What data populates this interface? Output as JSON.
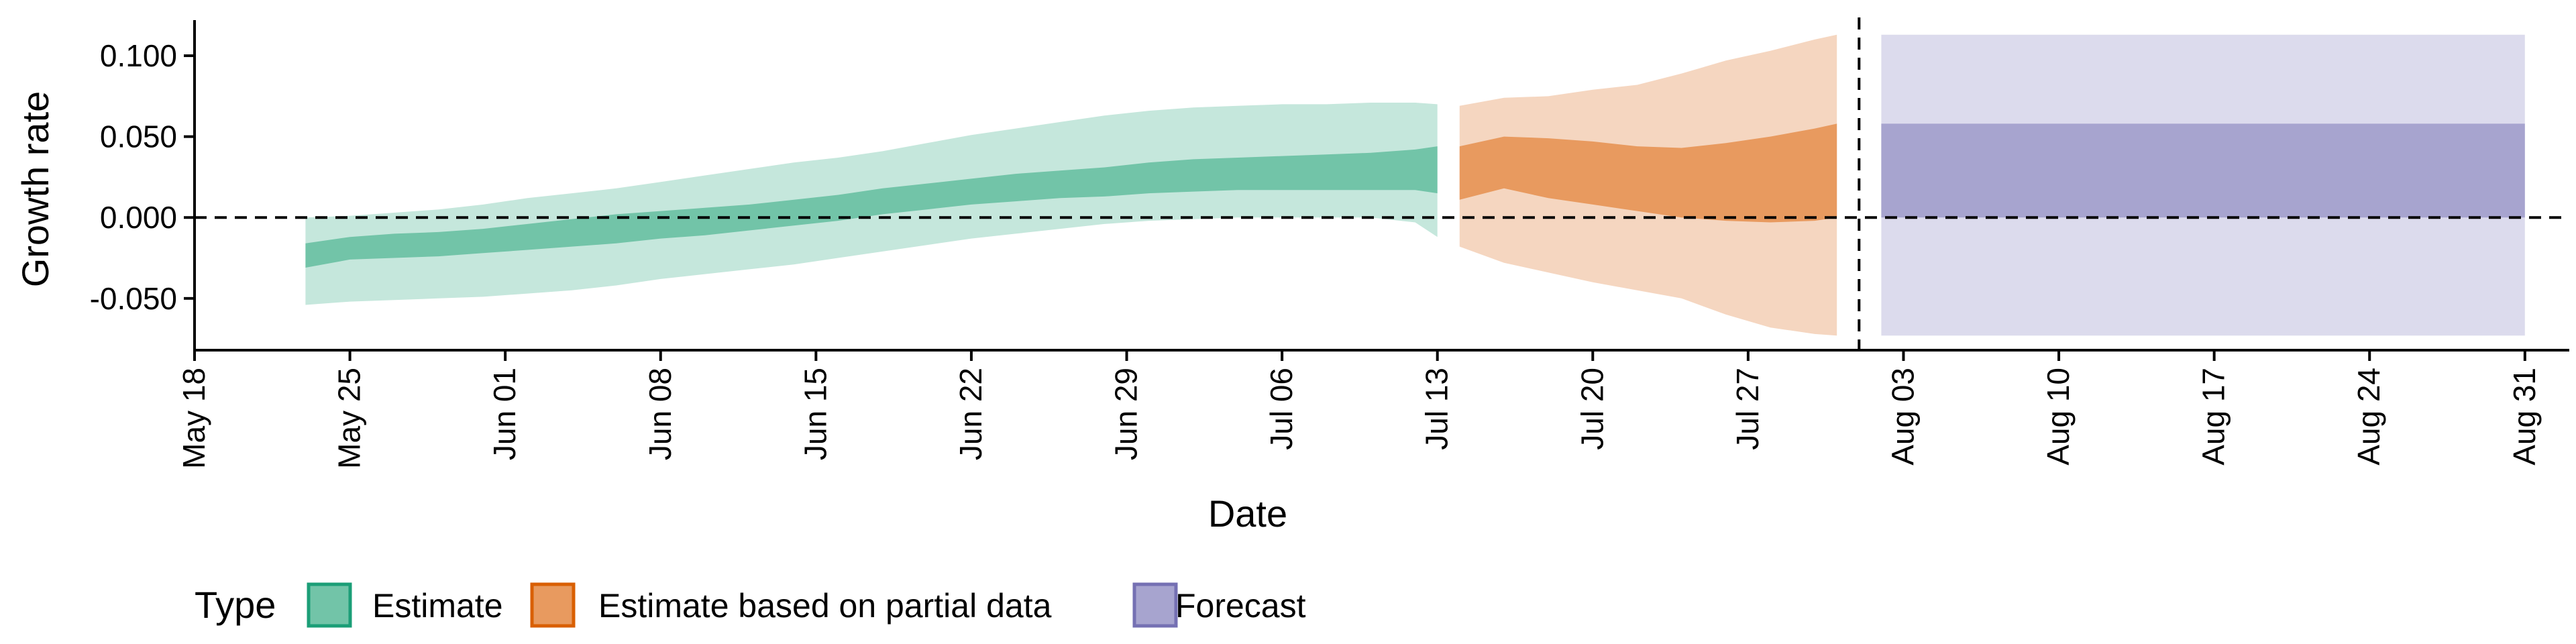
{
  "chart_data": {
    "type": "area",
    "xlabel": "Date",
    "ylabel": "Growth rate",
    "xlim": [
      "2020-05-18",
      "2020-09-02"
    ],
    "ylim": [
      -0.082,
      0.122
    ],
    "x_ticks": [
      "2020-05-18",
      "2020-05-25",
      "2020-06-01",
      "2020-06-08",
      "2020-06-15",
      "2020-06-22",
      "2020-06-29",
      "2020-07-06",
      "2020-07-13",
      "2020-07-20",
      "2020-07-27",
      "2020-08-03",
      "2020-08-10",
      "2020-08-17",
      "2020-08-24",
      "2020-08-31"
    ],
    "x_tick_labels": [
      "May 18",
      "May 25",
      "Jun 01",
      "Jun 08",
      "Jun 15",
      "Jun 22",
      "Jun 29",
      "Jul 06",
      "Jul 13",
      "Jul 20",
      "Jul 27",
      "Aug 03",
      "Aug 10",
      "Aug 17",
      "Aug 24",
      "Aug 31"
    ],
    "y_ticks": [
      -0.05,
      0.0,
      0.05,
      0.1
    ],
    "y_tick_labels": [
      "-0.050",
      "0.000",
      "0.050",
      "0.100"
    ],
    "hline": 0,
    "vline": "2020-08-01",
    "grid": false,
    "legend": {
      "title": "Type",
      "position": "bottom",
      "entries": [
        {
          "label": "Estimate",
          "fill": "#72c4a8",
          "border": "#1b9e77"
        },
        {
          "label": "Estimate based on partial data",
          "fill": "#e89a5f",
          "border": "#d95f02"
        },
        {
          "label": "Forecast",
          "fill": "#a7a4cf",
          "border": "#7570b3"
        }
      ]
    },
    "series": [
      {
        "name": "Estimate",
        "color_inner": "#72c4a8",
        "color_outer": "#c5e7dc",
        "x": [
          "2020-05-23",
          "2020-05-25",
          "2020-05-27",
          "2020-05-29",
          "2020-05-31",
          "2020-06-02",
          "2020-06-04",
          "2020-06-06",
          "2020-06-08",
          "2020-06-10",
          "2020-06-12",
          "2020-06-14",
          "2020-06-16",
          "2020-06-18",
          "2020-06-20",
          "2020-06-22",
          "2020-06-24",
          "2020-06-26",
          "2020-06-28",
          "2020-06-30",
          "2020-07-02",
          "2020-07-04",
          "2020-07-06",
          "2020-07-08",
          "2020-07-10",
          "2020-07-12",
          "2020-07-13"
        ],
        "inner_low": [
          -0.031,
          -0.026,
          -0.025,
          -0.024,
          -0.022,
          -0.02,
          -0.018,
          -0.016,
          -0.013,
          -0.011,
          -0.008,
          -0.005,
          -0.002,
          0.002,
          0.005,
          0.008,
          0.01,
          0.012,
          0.013,
          0.015,
          0.016,
          0.017,
          0.017,
          0.017,
          0.017,
          0.017,
          0.015
        ],
        "inner_high": [
          -0.016,
          -0.012,
          -0.01,
          -0.009,
          -0.007,
          -0.004,
          -0.001,
          0.002,
          0.004,
          0.006,
          0.008,
          0.011,
          0.014,
          0.018,
          0.021,
          0.024,
          0.027,
          0.029,
          0.031,
          0.034,
          0.036,
          0.037,
          0.038,
          0.039,
          0.04,
          0.042,
          0.044
        ],
        "outer_low": [
          -0.054,
          -0.052,
          -0.051,
          -0.05,
          -0.049,
          -0.047,
          -0.045,
          -0.042,
          -0.038,
          -0.035,
          -0.032,
          -0.029,
          -0.025,
          -0.021,
          -0.017,
          -0.013,
          -0.01,
          -0.007,
          -0.004,
          -0.002,
          -0.001,
          0.0,
          0.0,
          0.0,
          0.0,
          -0.003,
          -0.012
        ],
        "outer_high": [
          0.0,
          0.001,
          0.003,
          0.005,
          0.008,
          0.012,
          0.015,
          0.018,
          0.022,
          0.026,
          0.03,
          0.034,
          0.037,
          0.041,
          0.046,
          0.051,
          0.055,
          0.059,
          0.063,
          0.066,
          0.068,
          0.069,
          0.07,
          0.07,
          0.071,
          0.071,
          0.07
        ]
      },
      {
        "name": "Estimate based on partial data",
        "color_inner": "#e89a5f",
        "color_outer": "#f5d6c0",
        "x": [
          "2020-07-14",
          "2020-07-16",
          "2020-07-18",
          "2020-07-20",
          "2020-07-22",
          "2020-07-24",
          "2020-07-26",
          "2020-07-28",
          "2020-07-30",
          "2020-07-31"
        ],
        "inner_low": [
          0.011,
          0.018,
          0.012,
          0.008,
          0.004,
          0.0,
          -0.002,
          -0.003,
          -0.002,
          0.0
        ],
        "inner_high": [
          0.044,
          0.05,
          0.049,
          0.047,
          0.044,
          0.043,
          0.046,
          0.05,
          0.055,
          0.058
        ],
        "outer_low": [
          -0.018,
          -0.028,
          -0.034,
          -0.04,
          -0.045,
          -0.05,
          -0.06,
          -0.068,
          -0.072,
          -0.073
        ],
        "outer_high": [
          0.069,
          0.074,
          0.075,
          0.079,
          0.082,
          0.089,
          0.097,
          0.103,
          0.11,
          0.113
        ]
      },
      {
        "name": "Forecast",
        "color_inner": "#a7a4cf",
        "color_outer": "#dcdbed",
        "x": [
          "2020-08-02",
          "2020-08-31"
        ],
        "inner_low": [
          0.0,
          0.0
        ],
        "inner_high": [
          0.058,
          0.058
        ],
        "outer_low": [
          -0.073,
          -0.073
        ],
        "outer_high": [
          0.113,
          0.113
        ]
      }
    ]
  }
}
